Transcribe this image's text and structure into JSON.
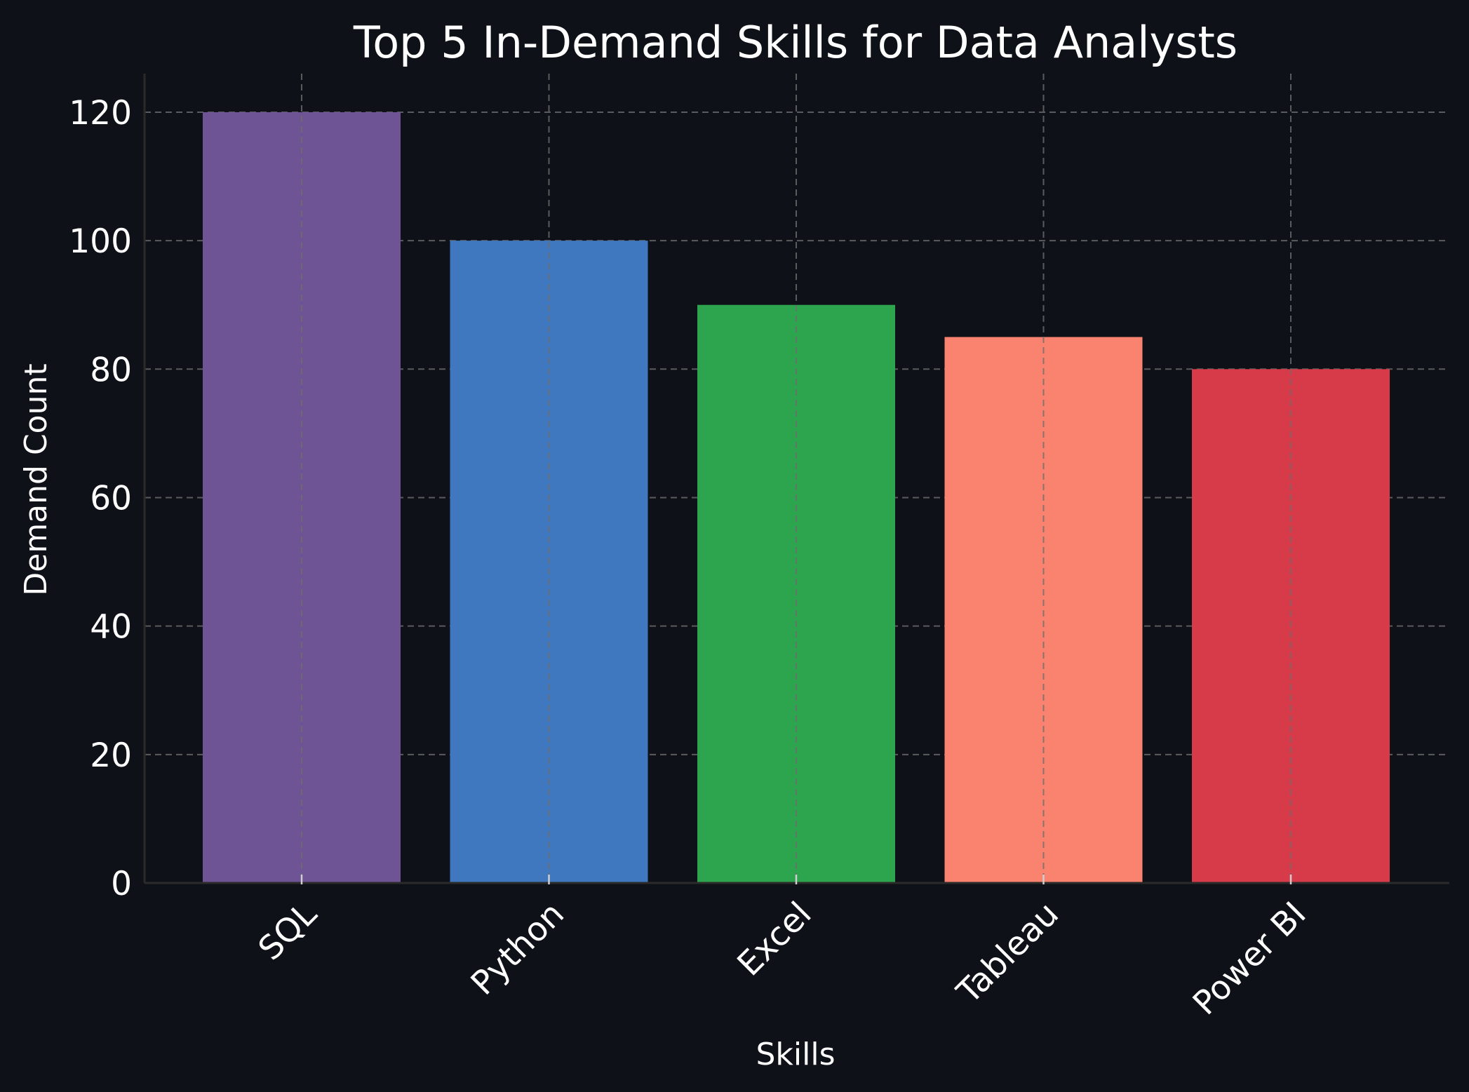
{
  "chart_data": {
    "type": "bar",
    "title": "Top 5 In-Demand Skills for Data Analysts",
    "xlabel": "Skills",
    "ylabel": "Demand Count",
    "categories": [
      "SQL",
      "Python",
      "Excel",
      "Tableau",
      "Power BI"
    ],
    "values": [
      120,
      100,
      90,
      85,
      80
    ],
    "colors": [
      "#6e5494",
      "#3f78be",
      "#2da44e",
      "#fa8370",
      "#d73a49"
    ],
    "ylim": [
      0,
      126
    ],
    "yticks": [
      0,
      20,
      40,
      60,
      80,
      100,
      120
    ],
    "grid": true,
    "background_color": "#0e1117"
  }
}
